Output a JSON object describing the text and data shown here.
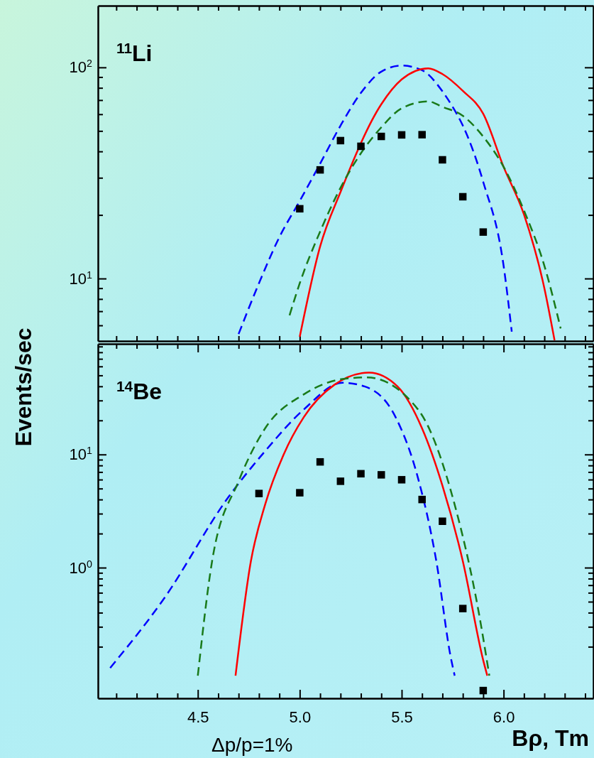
{
  "chart_data": [
    {
      "type": "scatter",
      "annotations": [
        "$^{11}$Li"
      ],
      "ylabel": "Events/sec",
      "xlim": [
        4.01,
        6.44
      ],
      "ylim": [
        5.06,
        196
      ],
      "log": "y",
      "grid": false,
      "tick_labels": "y",
      "xticks": [
        {
          "value": 4.1,
          "label": null
        },
        {
          "value": 4.2,
          "label": null
        },
        {
          "value": 4.3,
          "label": null
        },
        {
          "value": 4.4,
          "label": null
        },
        {
          "value": 4.5,
          "label": null
        },
        {
          "value": 4.6,
          "label": null
        },
        {
          "value": 4.7,
          "label": null
        },
        {
          "value": 4.8,
          "label": null
        },
        {
          "value": 4.9,
          "label": null
        },
        {
          "value": 5.0,
          "label": null
        },
        {
          "value": 5.1,
          "label": null
        },
        {
          "value": 5.2,
          "label": null
        },
        {
          "value": 5.3,
          "label": null
        },
        {
          "value": 5.4,
          "label": null
        },
        {
          "value": 5.5,
          "label": null
        },
        {
          "value": 5.6,
          "label": null
        },
        {
          "value": 5.7,
          "label": null
        },
        {
          "value": 5.8,
          "label": null
        },
        {
          "value": 5.9,
          "label": null
        },
        {
          "value": 6.0,
          "label": null
        },
        {
          "value": 6.1,
          "label": null
        },
        {
          "value": 6.2,
          "label": null
        },
        {
          "value": 6.3,
          "label": null
        },
        {
          "value": 6.4,
          "label": null
        }
      ],
      "yticks": [
        {
          "value": 6,
          "label": null
        },
        {
          "value": 7,
          "label": null
        },
        {
          "value": 8,
          "label": null
        },
        {
          "value": 9,
          "label": null
        },
        {
          "value": 10,
          "label": "10$^{1}$"
        },
        {
          "value": 20,
          "label": null
        },
        {
          "value": 30,
          "label": null
        },
        {
          "value": 40,
          "label": null
        },
        {
          "value": 50,
          "label": null
        },
        {
          "value": 60,
          "label": null
        },
        {
          "value": 70,
          "label": null
        },
        {
          "value": 80,
          "label": null
        },
        {
          "value": 90,
          "label": null
        },
        {
          "value": 100,
          "label": "10$^{2}$"
        }
      ],
      "series": [
        {
          "type": "line",
          "color": "#0000ff",
          "line_style": "dashed",
          "marker": "none",
          "x": [
            4.7,
            4.8,
            4.9,
            5.0,
            5.1,
            5.2,
            5.3,
            5.4,
            5.5,
            5.6,
            5.7,
            5.75,
            5.8,
            5.9,
            6.0,
            6.04
          ],
          "values": [
            5.46,
            9.5,
            15.7,
            23.3,
            35,
            53,
            75.7,
            95.5,
            102,
            97,
            77,
            65,
            53,
            28.7,
            11.5,
            5.6
          ]
        },
        {
          "type": "line",
          "color": "#ff0000",
          "line_style": "solid",
          "marker": "none",
          "x": [
            5.0,
            5.1,
            5.2,
            5.4,
            5.5,
            5.63,
            5.7,
            5.8,
            5.9,
            6.0,
            6.1,
            6.2,
            6.25
          ],
          "values": [
            5.3,
            14.2,
            25.7,
            66.9,
            87.7,
            99,
            93,
            77.4,
            60.3,
            33.8,
            20.1,
            9.0,
            5.1
          ]
        },
        {
          "type": "line",
          "color": "#1a7a1a",
          "line_style": "dashed",
          "marker": "none",
          "x": [
            4.95,
            5.0,
            5.1,
            5.2,
            5.3,
            5.4,
            5.5,
            5.63,
            5.7,
            5.8,
            5.9,
            6.0,
            6.1,
            6.2,
            6.28
          ],
          "values": [
            6.7,
            9.5,
            16.7,
            26.9,
            39.2,
            52,
            64,
            69,
            65,
            59,
            47,
            33.8,
            21,
            11.5,
            5.8
          ]
        },
        {
          "color": "#000000",
          "marker": "square",
          "x": [
            5.0,
            5.1,
            5.2,
            5.3,
            5.4,
            5.5,
            5.6,
            5.7,
            5.8,
            5.9
          ],
          "values": [
            21.4,
            32.7,
            45,
            42.3,
            47.1,
            47.9,
            48,
            36.5,
            24.4,
            16.6
          ]
        }
      ]
    },
    {
      "type": "scatter",
      "annotations": [
        "$^{14}$Be",
        "Δp/p=1%"
      ],
      "xlabel": "Bρ, Tm",
      "xlim": [
        4.01,
        6.44
      ],
      "ylim": [
        0.07,
        95
      ],
      "log": "y",
      "grid": false,
      "xticks": [
        {
          "value": 4.1,
          "label": null
        },
        {
          "value": 4.2,
          "label": null
        },
        {
          "value": 4.3,
          "label": null
        },
        {
          "value": 4.4,
          "label": null
        },
        {
          "value": 4.5,
          "label": "4.5"
        },
        {
          "value": 4.6,
          "label": null
        },
        {
          "value": 4.7,
          "label": null
        },
        {
          "value": 4.8,
          "label": null
        },
        {
          "value": 4.9,
          "label": null
        },
        {
          "value": 5.0,
          "label": "5.0"
        },
        {
          "value": 5.1,
          "label": null
        },
        {
          "value": 5.2,
          "label": null
        },
        {
          "value": 5.3,
          "label": null
        },
        {
          "value": 5.4,
          "label": null
        },
        {
          "value": 5.5,
          "label": "5.5"
        },
        {
          "value": 5.6,
          "label": null
        },
        {
          "value": 5.7,
          "label": null
        },
        {
          "value": 5.8,
          "label": null
        },
        {
          "value": 5.9,
          "label": null
        },
        {
          "value": 6.0,
          "label": "6.0"
        },
        {
          "value": 6.1,
          "label": null
        },
        {
          "value": 6.2,
          "label": null
        },
        {
          "value": 6.3,
          "label": null
        },
        {
          "value": 6.4,
          "label": null
        }
      ],
      "yticks": [
        {
          "value": 0.2,
          "label": null
        },
        {
          "value": 0.3,
          "label": null
        },
        {
          "value": 0.4,
          "label": null
        },
        {
          "value": 0.5,
          "label": null
        },
        {
          "value": 0.6,
          "label": null
        },
        {
          "value": 0.7,
          "label": null
        },
        {
          "value": 0.8,
          "label": null
        },
        {
          "value": 0.9,
          "label": null
        },
        {
          "value": 1,
          "label": "10$^{0}$"
        },
        {
          "value": 2,
          "label": null
        },
        {
          "value": 3,
          "label": null
        },
        {
          "value": 4,
          "label": null
        },
        {
          "value": 5,
          "label": null
        },
        {
          "value": 6,
          "label": null
        },
        {
          "value": 7,
          "label": null
        },
        {
          "value": 8,
          "label": null
        },
        {
          "value": 9,
          "label": null
        },
        {
          "value": 10,
          "label": "10$^{1}$"
        },
        {
          "value": 20,
          "label": null
        },
        {
          "value": 30,
          "label": null
        },
        {
          "value": 40,
          "label": null
        },
        {
          "value": 50,
          "label": null
        },
        {
          "value": 60,
          "label": null
        },
        {
          "value": 70,
          "label": null
        },
        {
          "value": 80,
          "label": null
        },
        {
          "value": 90,
          "label": null
        }
      ],
      "series": [
        {
          "type": "line",
          "color": "#0000ff",
          "line_style": "dashed",
          "marker": "none",
          "x": [
            4.07,
            4.33,
            4.65,
            4.83,
            5.02,
            5.21,
            5.32,
            5.47,
            5.58,
            5.67,
            5.74,
            5.76
          ],
          "values": [
            0.13,
            0.52,
            4.2,
            10.7,
            25,
            43,
            39.8,
            21.4,
            6.2,
            1.14,
            0.164,
            0.111
          ]
        },
        {
          "type": "line",
          "color": "#ff0000",
          "line_style": "solid",
          "marker": "none",
          "x": [
            4.685,
            4.76,
            4.83,
            4.92,
            5.02,
            5.17,
            5.34,
            5.48,
            5.6,
            5.7,
            5.8,
            5.9,
            5.92
          ],
          "values": [
            0.111,
            1.13,
            3.6,
            9.9,
            21.4,
            41.3,
            52.9,
            39.8,
            17,
            5.3,
            1.14,
            0.152,
            0.111
          ]
        },
        {
          "type": "line",
          "color": "#1a7a1a",
          "line_style": "dashed",
          "marker": "none",
          "x": [
            4.5,
            4.57,
            4.7,
            4.83,
            5.02,
            5.21,
            5.33,
            5.58,
            5.76,
            5.88,
            5.93
          ],
          "values": [
            0.111,
            1.14,
            5.8,
            17,
            34,
            46.4,
            48,
            25,
            3.6,
            0.385,
            0.111
          ]
        },
        {
          "color": "#000000",
          "marker": "square",
          "x": [
            4.8,
            5.0,
            5.1,
            5.2,
            5.3,
            5.4,
            5.5,
            5.6,
            5.7,
            5.8,
            5.9
          ],
          "values": [
            4.52,
            4.59,
            8.6,
            5.8,
            6.76,
            6.61,
            5.98,
            4.0,
            2.57,
            0.435,
            0.082
          ]
        }
      ]
    }
  ]
}
